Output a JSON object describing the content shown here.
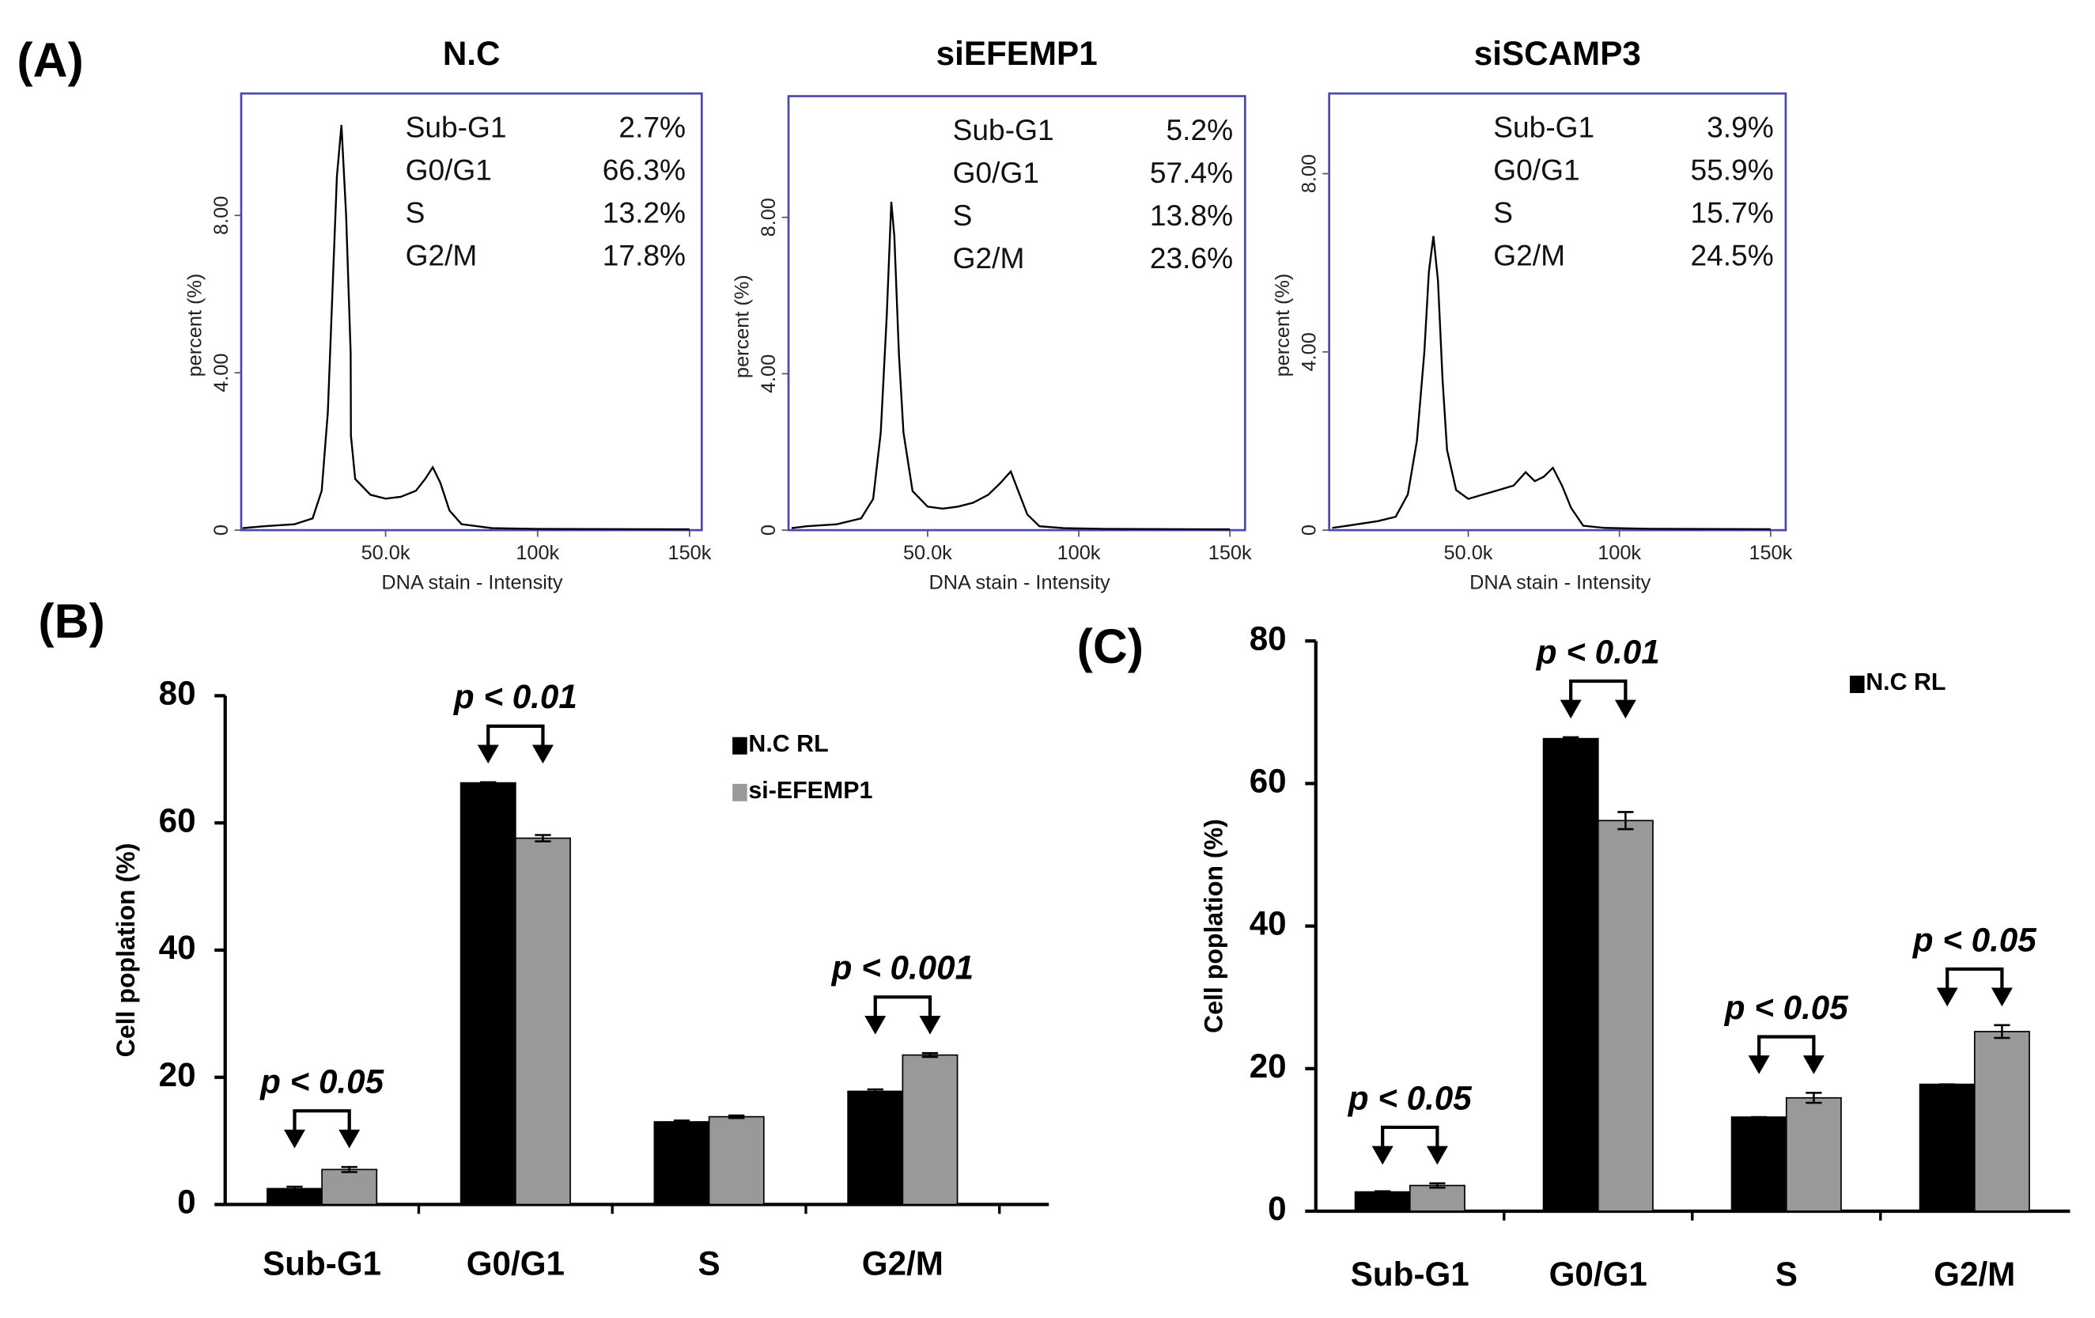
{
  "panel_labels": [
    "(A)",
    "(B)",
    "(C)"
  ],
  "chart_data": [
    {
      "type": "line",
      "title": "N.C",
      "xlabel": "DNA stain - Intensity",
      "ylabel": "percent (%)",
      "color": "#000000",
      "frame_color": "#4a48b0",
      "xlim": [
        2500,
        154000
      ],
      "ylim": [
        0,
        11.1
      ],
      "xticks": [
        {
          "value": 50000,
          "label": "50.0k"
        },
        {
          "value": 100000,
          "label": "100k"
        },
        {
          "value": 150000,
          "label": "150k"
        }
      ],
      "yticks": [
        0,
        {
          "value": 4,
          "label": "4.00"
        },
        {
          "value": 8,
          "label": "8.00"
        }
      ],
      "x": [
        3000,
        10000,
        20000,
        26000,
        29000,
        31000,
        32500,
        34000,
        35500,
        37000,
        38500,
        38600,
        40000,
        45000,
        50000,
        55000,
        60000,
        63000,
        65500,
        68000,
        71000,
        75000,
        85000,
        100000,
        150000
      ],
      "values": [
        0.05,
        0.1,
        0.15,
        0.3,
        1.0,
        3.0,
        6.0,
        9.0,
        10.3,
        8.0,
        4.5,
        2.4,
        1.3,
        0.9,
        0.8,
        0.85,
        1.0,
        1.3,
        1.6,
        1.2,
        0.5,
        0.15,
        0.05,
        0.03,
        0.02
      ],
      "stats": [
        [
          "Sub-G1",
          "2.7%"
        ],
        [
          "G0/G1",
          "66.3%"
        ],
        [
          "S",
          "13.2%"
        ],
        [
          "G2/M",
          "17.8%"
        ]
      ]
    },
    {
      "type": "line",
      "title": "siEFEMP1",
      "xlabel": "DNA stain - Intensity",
      "ylabel": "percent (%)",
      "color": "#000000",
      "frame_color": "#4a48b0",
      "xlim": [
        4000,
        155000
      ],
      "ylim": [
        0,
        11.1
      ],
      "xticks": [
        {
          "value": 50000,
          "label": "50.0k"
        },
        {
          "value": 100000,
          "label": "100k"
        },
        {
          "value": 150000,
          "label": "150k"
        }
      ],
      "yticks": [
        0,
        {
          "value": 4,
          "label": "4.00"
        },
        {
          "value": 8,
          "label": "8.00"
        }
      ],
      "x": [
        5000,
        10000,
        20000,
        28000,
        32000,
        34500,
        36500,
        38000,
        39000,
        40500,
        42000,
        45000,
        50000,
        55000,
        60000,
        65000,
        70000,
        74000,
        77500,
        80000,
        83000,
        87000,
        95000,
        110000,
        150000
      ],
      "values": [
        0.05,
        0.1,
        0.15,
        0.3,
        0.8,
        2.5,
        5.5,
        8.4,
        7.5,
        4.5,
        2.5,
        1.0,
        0.6,
        0.55,
        0.6,
        0.7,
        0.9,
        1.2,
        1.5,
        1.0,
        0.4,
        0.1,
        0.05,
        0.03,
        0.02
      ],
      "stats": [
        [
          "Sub-G1",
          "5.2%"
        ],
        [
          "G0/G1",
          "57.4%"
        ],
        [
          "S",
          "13.8%"
        ],
        [
          "G2/M",
          "23.6%"
        ]
      ]
    },
    {
      "type": "line",
      "title": "siSCAMP3",
      "xlabel": "DNA stain - Intensity",
      "ylabel": "percent (%)",
      "color": "#000000",
      "frame_color": "#4a48b0",
      "xlim": [
        4000,
        155000
      ],
      "ylim": [
        0,
        9.8
      ],
      "xticks": [
        {
          "value": 50000,
          "label": "50.0k"
        },
        {
          "value": 100000,
          "label": "100k"
        },
        {
          "value": 150000,
          "label": "150k"
        }
      ],
      "yticks": [
        0,
        {
          "value": 4,
          "label": "4.00"
        },
        {
          "value": 8,
          "label": "8.00"
        }
      ],
      "x": [
        5000,
        10000,
        20000,
        26000,
        30000,
        33000,
        35500,
        37000,
        38500,
        40000,
        41500,
        43000,
        46000,
        50000,
        55000,
        60000,
        65000,
        69000,
        72000,
        75000,
        78000,
        81000,
        84000,
        88000,
        95000,
        110000,
        150000
      ],
      "values": [
        0.05,
        0.1,
        0.2,
        0.3,
        0.8,
        2.0,
        4.0,
        5.8,
        6.6,
        5.6,
        3.4,
        1.8,
        0.9,
        0.7,
        0.8,
        0.9,
        1.0,
        1.3,
        1.1,
        1.2,
        1.4,
        1.0,
        0.5,
        0.1,
        0.05,
        0.03,
        0.02
      ],
      "stats": [
        [
          "Sub-G1",
          "3.9%"
        ],
        [
          "G0/G1",
          "55.9%"
        ],
        [
          "S",
          "15.7%"
        ],
        [
          "G2/M",
          "24.5%"
        ]
      ]
    },
    {
      "type": "bar",
      "ylabel": "Cell poplation (%)",
      "categories": [
        "Sub-G1",
        "G0/G1",
        "S",
        "G2/M"
      ],
      "ylim": [
        0,
        80
      ],
      "yticks": [
        0,
        20,
        40,
        60,
        80
      ],
      "series": [
        {
          "name": "N.C RL",
          "color": "#000000",
          "values": [
            2.5,
            66.3,
            13.0,
            17.8
          ],
          "errors": [
            0.3,
            0.1,
            0.2,
            0.3
          ]
        },
        {
          "name": "si-EFEMP1",
          "color": "#999999",
          "values": [
            5.5,
            57.6,
            13.8,
            23.5
          ],
          "errors": [
            0.4,
            0.5,
            0.2,
            0.3
          ]
        }
      ],
      "annotations": [
        {
          "text": "p < 0.05",
          "category": 0
        },
        {
          "text": "p < 0.01",
          "category": 1
        },
        {
          "text": "p < 0.001",
          "category": 3
        }
      ]
    },
    {
      "type": "bar",
      "ylabel": "Cell poplation (%)",
      "categories": [
        "Sub-G1",
        "G0/G1",
        "S",
        "G2/M"
      ],
      "ylim": [
        0,
        80
      ],
      "yticks": [
        0,
        20,
        40,
        60,
        80
      ],
      "series": [
        {
          "name": "N.C RL",
          "color": "#000000",
          "values": [
            2.7,
            66.3,
            13.2,
            17.8
          ],
          "errors": [
            0.1,
            0.2,
            0,
            0
          ]
        },
        {
          "color": "#999999",
          "values": [
            3.6,
            54.8,
            15.9,
            25.2
          ],
          "errors": [
            0.3,
            1.2,
            0.7,
            0.9
          ]
        }
      ],
      "annotations": [
        {
          "text": "p < 0.05",
          "category": 0
        },
        {
          "text": "p < 0.01",
          "category": 1
        },
        {
          "text": "p < 0.05",
          "category": 2
        },
        {
          "text": "p < 0.05",
          "category": 3
        }
      ]
    }
  ]
}
